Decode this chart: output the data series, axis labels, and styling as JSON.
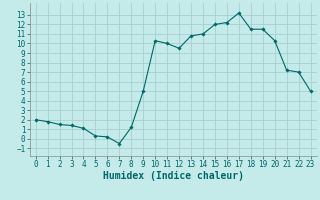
{
  "title": "",
  "xlabel": "Humidex (Indice chaleur)",
  "background_color": "#c5eaea",
  "grid_color": "#a8d0d0",
  "line_color": "#006868",
  "marker_color": "#006868",
  "x": [
    0,
    1,
    2,
    3,
    4,
    5,
    6,
    7,
    8,
    9,
    10,
    11,
    12,
    13,
    14,
    15,
    16,
    17,
    18,
    19,
    20,
    21,
    22,
    23
  ],
  "y": [
    2.0,
    1.8,
    1.5,
    1.4,
    1.1,
    0.3,
    0.2,
    -0.5,
    1.2,
    5.0,
    10.3,
    10.0,
    9.5,
    10.8,
    11.0,
    12.0,
    12.2,
    13.2,
    11.5,
    11.5,
    10.3,
    7.2,
    7.0,
    5.0
  ],
  "xlim": [
    -0.5,
    23.5
  ],
  "ylim": [
    -1.8,
    14.2
  ],
  "yticks": [
    -1,
    0,
    1,
    2,
    3,
    4,
    5,
    6,
    7,
    8,
    9,
    10,
    11,
    12,
    13
  ],
  "xticks": [
    0,
    1,
    2,
    3,
    4,
    5,
    6,
    7,
    8,
    9,
    10,
    11,
    12,
    13,
    14,
    15,
    16,
    17,
    18,
    19,
    20,
    21,
    22,
    23
  ],
  "fontsize_label": 7,
  "fontsize_tick": 5.5
}
